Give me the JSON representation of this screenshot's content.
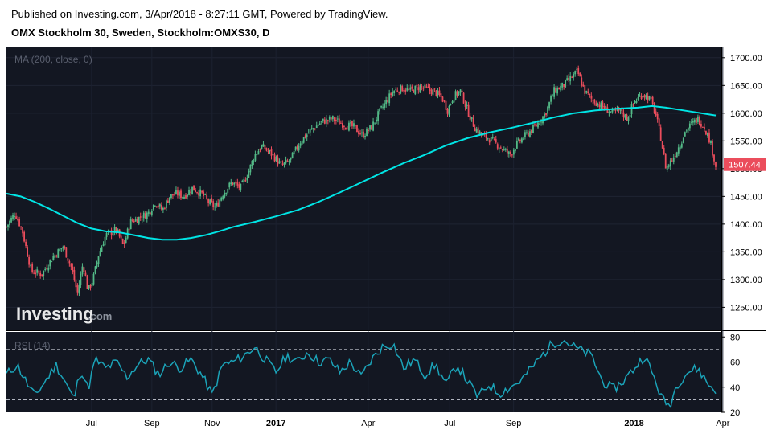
{
  "header": {
    "published": "Published on Investing.com, 3/Apr/2018 - 8:27:11 GMT, Powered by TradingView.",
    "title": "OMX Stockholm 30, Sweden, Stockholm:OMXS30, D"
  },
  "watermark": {
    "brand": "Investing",
    "suffix": ".com"
  },
  "colors": {
    "background": "#131722",
    "up": "#26a69a",
    "up_candle": "#53b987",
    "down_candle": "#eb4d5c",
    "ma": "#00e5e5",
    "rsi": "#1ba3b8",
    "last_price_bg": "#eb4d5c"
  },
  "chart_data": [
    {
      "type": "candlestick",
      "indicator_label": "MA (200, close, 0)",
      "last_price_label": "1507.44",
      "ylim": [
        1210,
        1720
      ],
      "yticks": [
        {
          "v": 1250,
          "label": "1250.00"
        },
        {
          "v": 1300,
          "label": "1300.00"
        },
        {
          "v": 1350,
          "label": "1350.00"
        },
        {
          "v": 1400,
          "label": "1400.00"
        },
        {
          "v": 1450,
          "label": "1450.00"
        },
        {
          "v": 1500,
          "label": "1500.00"
        },
        {
          "v": 1550,
          "label": "1550.00"
        },
        {
          "v": 1600,
          "label": "1600.00"
        },
        {
          "v": 1650,
          "label": "1650.00"
        },
        {
          "v": 1700,
          "label": "1700.00"
        }
      ],
      "xticks": [
        {
          "t": 0.12,
          "label": "Jul"
        },
        {
          "t": 0.205,
          "label": "Sep"
        },
        {
          "t": 0.29,
          "label": "Nov"
        },
        {
          "t": 0.38,
          "label": "2017"
        },
        {
          "t": 0.51,
          "label": "Apr"
        },
        {
          "t": 0.625,
          "label": "Jul"
        },
        {
          "t": 0.715,
          "label": "Sep"
        },
        {
          "t": 0.885,
          "label": "2018"
        },
        {
          "t": 1.01,
          "label": "Apr"
        }
      ],
      "close_path": [
        [
          0.0,
          1395
        ],
        [
          0.012,
          1420
        ],
        [
          0.022,
          1390
        ],
        [
          0.035,
          1315
        ],
        [
          0.05,
          1310
        ],
        [
          0.065,
          1340
        ],
        [
          0.08,
          1360
        ],
        [
          0.092,
          1320
        ],
        [
          0.1,
          1275
        ],
        [
          0.108,
          1330
        ],
        [
          0.115,
          1280
        ],
        [
          0.122,
          1300
        ],
        [
          0.13,
          1345
        ],
        [
          0.14,
          1380
        ],
        [
          0.148,
          1385
        ],
        [
          0.155,
          1390
        ],
        [
          0.165,
          1360
        ],
        [
          0.175,
          1405
        ],
        [
          0.185,
          1410
        ],
        [
          0.2,
          1420
        ],
        [
          0.21,
          1440
        ],
        [
          0.22,
          1425
        ],
        [
          0.23,
          1450
        ],
        [
          0.24,
          1455
        ],
        [
          0.25,
          1450
        ],
        [
          0.262,
          1465
        ],
        [
          0.275,
          1455
        ],
        [
          0.285,
          1440
        ],
        [
          0.295,
          1430
        ],
        [
          0.305,
          1455
        ],
        [
          0.318,
          1475
        ],
        [
          0.33,
          1465
        ],
        [
          0.34,
          1490
        ],
        [
          0.35,
          1525
        ],
        [
          0.36,
          1540
        ],
        [
          0.375,
          1525
        ],
        [
          0.388,
          1505
        ],
        [
          0.4,
          1515
        ],
        [
          0.415,
          1550
        ],
        [
          0.43,
          1570
        ],
        [
          0.445,
          1585
        ],
        [
          0.46,
          1590
        ],
        [
          0.475,
          1580
        ],
        [
          0.49,
          1575
        ],
        [
          0.502,
          1560
        ],
        [
          0.515,
          1575
        ],
        [
          0.525,
          1600
        ],
        [
          0.535,
          1620
        ],
        [
          0.545,
          1640
        ],
        [
          0.558,
          1645
        ],
        [
          0.57,
          1640
        ],
        [
          0.583,
          1648
        ],
        [
          0.595,
          1642
        ],
        [
          0.605,
          1638
        ],
        [
          0.615,
          1625
        ],
        [
          0.622,
          1605
        ],
        [
          0.63,
          1630
        ],
        [
          0.64,
          1640
        ],
        [
          0.65,
          1605
        ],
        [
          0.66,
          1575
        ],
        [
          0.67,
          1560
        ],
        [
          0.68,
          1555
        ],
        [
          0.69,
          1545
        ],
        [
          0.7,
          1535
        ],
        [
          0.71,
          1525
        ],
        [
          0.72,
          1545
        ],
        [
          0.732,
          1560
        ],
        [
          0.745,
          1575
        ],
        [
          0.76,
          1600
        ],
        [
          0.772,
          1640
        ],
        [
          0.785,
          1650
        ],
        [
          0.797,
          1665
        ],
        [
          0.805,
          1675
        ],
        [
          0.815,
          1640
        ],
        [
          0.825,
          1625
        ],
        [
          0.84,
          1612
        ],
        [
          0.855,
          1600
        ],
        [
          0.865,
          1605
        ],
        [
          0.875,
          1590
        ],
        [
          0.885,
          1620
        ],
        [
          0.897,
          1635
        ],
        [
          0.908,
          1625
        ],
        [
          0.915,
          1600
        ],
        [
          0.922,
          1560
        ],
        [
          0.93,
          1500
        ],
        [
          0.94,
          1520
        ],
        [
          0.95,
          1545
        ],
        [
          0.958,
          1570
        ],
        [
          0.966,
          1580
        ],
        [
          0.975,
          1590
        ],
        [
          0.984,
          1575
        ],
        [
          0.992,
          1550
        ],
        [
          1.0,
          1505
        ]
      ],
      "ma_path": [
        [
          0.0,
          1455
        ],
        [
          0.02,
          1450
        ],
        [
          0.04,
          1440
        ],
        [
          0.06,
          1428
        ],
        [
          0.08,
          1415
        ],
        [
          0.1,
          1402
        ],
        [
          0.12,
          1392
        ],
        [
          0.14,
          1387
        ],
        [
          0.16,
          1385
        ],
        [
          0.18,
          1380
        ],
        [
          0.2,
          1375
        ],
        [
          0.22,
          1372
        ],
        [
          0.24,
          1372
        ],
        [
          0.26,
          1375
        ],
        [
          0.28,
          1380
        ],
        [
          0.3,
          1387
        ],
        [
          0.32,
          1395
        ],
        [
          0.35,
          1404
        ],
        [
          0.38,
          1414
        ],
        [
          0.41,
          1425
        ],
        [
          0.44,
          1440
        ],
        [
          0.47,
          1457
        ],
        [
          0.5,
          1475
        ],
        [
          0.53,
          1493
        ],
        [
          0.56,
          1510
        ],
        [
          0.59,
          1525
        ],
        [
          0.62,
          1542
        ],
        [
          0.65,
          1555
        ],
        [
          0.68,
          1565
        ],
        [
          0.71,
          1573
        ],
        [
          0.74,
          1582
        ],
        [
          0.77,
          1592
        ],
        [
          0.8,
          1600
        ],
        [
          0.83,
          1605
        ],
        [
          0.86,
          1608
        ],
        [
          0.89,
          1610
        ],
        [
          0.91,
          1613
        ],
        [
          0.93,
          1610
        ],
        [
          0.95,
          1606
        ],
        [
          0.97,
          1602
        ],
        [
          0.99,
          1598
        ],
        [
          1.0,
          1596
        ]
      ]
    },
    {
      "type": "line",
      "indicator_label": "RSI (14)",
      "ylim": [
        20,
        84
      ],
      "yticks": [
        {
          "v": 20,
          "label": "20"
        },
        {
          "v": 40,
          "label": "40"
        },
        {
          "v": 60,
          "label": "60"
        },
        {
          "v": 80,
          "label": "80"
        }
      ],
      "bands": [
        70,
        30
      ],
      "rsi_path": [
        [
          0.0,
          50
        ],
        [
          0.015,
          58
        ],
        [
          0.03,
          42
        ],
        [
          0.04,
          33
        ],
        [
          0.055,
          45
        ],
        [
          0.07,
          58
        ],
        [
          0.085,
          42
        ],
        [
          0.095,
          30
        ],
        [
          0.105,
          55
        ],
        [
          0.115,
          38
        ],
        [
          0.125,
          62
        ],
        [
          0.14,
          55
        ],
        [
          0.155,
          60
        ],
        [
          0.17,
          48
        ],
        [
          0.185,
          58
        ],
        [
          0.2,
          62
        ],
        [
          0.215,
          50
        ],
        [
          0.23,
          60
        ],
        [
          0.245,
          55
        ],
        [
          0.26,
          62
        ],
        [
          0.275,
          50
        ],
        [
          0.29,
          34
        ],
        [
          0.305,
          58
        ],
        [
          0.32,
          60
        ],
        [
          0.335,
          65
        ],
        [
          0.35,
          72
        ],
        [
          0.365,
          62
        ],
        [
          0.38,
          52
        ],
        [
          0.395,
          65
        ],
        [
          0.41,
          60
        ],
        [
          0.425,
          68
        ],
        [
          0.44,
          60
        ],
        [
          0.455,
          62
        ],
        [
          0.47,
          52
        ],
        [
          0.485,
          60
        ],
        [
          0.5,
          48
        ],
        [
          0.515,
          62
        ],
        [
          0.53,
          72
        ],
        [
          0.545,
          75
        ],
        [
          0.56,
          55
        ],
        [
          0.575,
          62
        ],
        [
          0.59,
          50
        ],
        [
          0.605,
          58
        ],
        [
          0.62,
          42
        ],
        [
          0.635,
          58
        ],
        [
          0.65,
          45
        ],
        [
          0.665,
          32
        ],
        [
          0.68,
          42
        ],
        [
          0.695,
          35
        ],
        [
          0.71,
          40
        ],
        [
          0.725,
          45
        ],
        [
          0.74,
          55
        ],
        [
          0.755,
          65
        ],
        [
          0.77,
          75
        ],
        [
          0.785,
          78
        ],
        [
          0.8,
          72
        ],
        [
          0.815,
          68
        ],
        [
          0.825,
          65
        ],
        [
          0.84,
          45
        ],
        [
          0.855,
          38
        ],
        [
          0.87,
          45
        ],
        [
          0.885,
          55
        ],
        [
          0.9,
          65
        ],
        [
          0.915,
          45
        ],
        [
          0.925,
          30
        ],
        [
          0.935,
          25
        ],
        [
          0.945,
          42
        ],
        [
          0.96,
          52
        ],
        [
          0.975,
          55
        ],
        [
          0.99,
          42
        ],
        [
          1.0,
          38
        ]
      ]
    }
  ]
}
